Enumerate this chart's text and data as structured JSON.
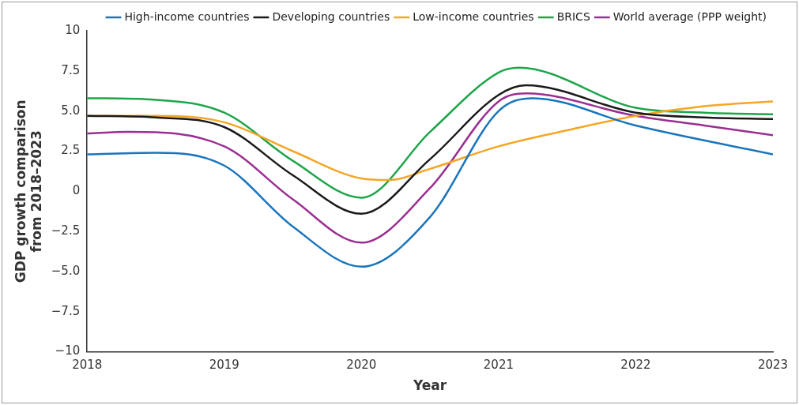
{
  "chart_data": {
    "type": "line",
    "xlabel": "Year",
    "ylabel": "GDP growth comparison\nfrom 2018–2023",
    "xlim": [
      2018,
      2023
    ],
    "xticks": [
      2018,
      2019,
      2020,
      2021,
      2022,
      2023
    ],
    "ylim": [
      -10,
      10
    ],
    "yticks": [
      {
        "value": -10,
        "label": "−10"
      },
      {
        "value": -7.5,
        "label": "−7.5"
      },
      {
        "value": -5,
        "label": "−5.0"
      },
      {
        "value": -2.5,
        "label": "−2.5"
      },
      0,
      {
        "value": 2.5,
        "label": "2.5"
      },
      {
        "value": 5,
        "label": "5.0"
      },
      {
        "value": 7.5,
        "label": "7.5"
      },
      10
    ],
    "grid": false,
    "legend": "top right",
    "marker": "none",
    "line_style": "solid",
    "series": [
      {
        "name": "High-income countries",
        "color": "#1a75bc",
        "x": [
          2018,
          2018.5,
          2019,
          2019.5,
          2020,
          2020.5,
          2021,
          2021.25,
          2022,
          2023
        ],
        "values": [
          2.3,
          2.4,
          1.6,
          -2.2,
          -4.7,
          -1.6,
          5.0,
          5.8,
          4.1,
          2.3
        ]
      },
      {
        "name": "Developing countries",
        "color": "#1a1a1a",
        "x": [
          2018,
          2018.5,
          2019,
          2019.5,
          2020,
          2020.5,
          2021,
          2021.2,
          2022,
          2022.5,
          2023
        ],
        "values": [
          4.7,
          4.6,
          4.0,
          1.0,
          -1.4,
          2.0,
          6.0,
          6.6,
          4.9,
          4.6,
          4.5
        ]
      },
      {
        "name": "Low-income countries",
        "color": "#f5a623",
        "x": [
          2018,
          2018.5,
          2019,
          2019.5,
          2020,
          2020.2,
          2020.5,
          2021,
          2021.5,
          2022,
          2022.5,
          2023
        ],
        "values": [
          4.7,
          4.7,
          4.3,
          2.5,
          0.8,
          0.7,
          1.4,
          2.8,
          3.8,
          4.7,
          5.3,
          5.6
        ]
      },
      {
        "name": "BRICS",
        "color": "#1fa54a",
        "x": [
          2018,
          2018.5,
          2019,
          2019.5,
          2020,
          2020.5,
          2021,
          2021.15,
          2022,
          2022.5,
          2023
        ],
        "values": [
          5.8,
          5.7,
          4.9,
          1.9,
          -0.4,
          3.7,
          7.4,
          7.7,
          5.2,
          4.9,
          4.8
        ]
      },
      {
        "name": "World average (PPP weight)",
        "color": "#9b2f91",
        "x": [
          2018,
          2018.3,
          2019,
          2019.5,
          2020,
          2020.5,
          2021,
          2021.2,
          2022,
          2022.5,
          2023
        ],
        "values": [
          3.6,
          3.7,
          2.8,
          -0.5,
          -3.2,
          0.2,
          5.6,
          6.1,
          4.7,
          4.1,
          3.5
        ]
      }
    ]
  }
}
